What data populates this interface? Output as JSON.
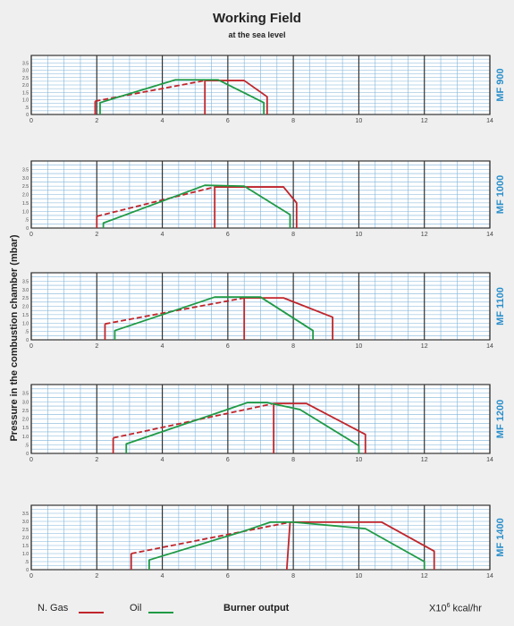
{
  "title": "Working Field",
  "subtitle": "at the sea level",
  "ylabel": "Pressure in the combustion chamber (mbar)",
  "legend": {
    "gas_label": "N. Gas",
    "oil_label": "Oil",
    "center_label": "Burner output",
    "unit_prefix": "X10",
    "unit_exp": "6",
    "unit_suffix": " kcal/hr"
  },
  "colors": {
    "gas": "#c0252b",
    "oil": "#1f9a45",
    "model_label": "#2a8fcb",
    "grid_minor": "#7fb3d9",
    "grid_major": "#333333"
  },
  "chart_data": [
    {
      "type": "line",
      "model": "MF 900",
      "xlim": [
        0,
        14
      ],
      "ylim": [
        0,
        4
      ],
      "x_ticks": [
        0,
        2,
        4,
        6,
        8,
        10,
        12,
        14
      ],
      "x_tick_labels": [
        "0",
        "2",
        "4",
        "6",
        "8",
        "10",
        "12",
        "14"
      ],
      "y_tick_labels": [
        "3.5",
        "3.0",
        "2.5",
        "2.0",
        "1.5",
        "1.0",
        ".5",
        "0"
      ],
      "series": [
        {
          "name": "N. Gas",
          "segments": [
            {
              "dashed": false,
              "points": [
                [
                  1.95,
                  0
                ],
                [
                  1.95,
                  0.9
                ]
              ]
            },
            {
              "dashed": true,
              "points": [
                [
                  1.95,
                  0.9
                ],
                [
                  5.3,
                  2.3
                ]
              ]
            },
            {
              "dashed": false,
              "points": [
                [
                  5.3,
                  2.3
                ],
                [
                  6.5,
                  2.3
                ],
                [
                  7.2,
                  1.2
                ],
                [
                  7.2,
                  0
                ]
              ]
            },
            {
              "dashed": false,
              "points": [
                [
                  5.3,
                  2.3
                ],
                [
                  5.3,
                  0
                ]
              ]
            }
          ]
        },
        {
          "name": "Oil",
          "segments": [
            {
              "dashed": false,
              "points": [
                [
                  2.1,
                  0
                ],
                [
                  2.1,
                  0.8
                ],
                [
                  4.4,
                  2.35
                ],
                [
                  5.7,
                  2.35
                ],
                [
                  7.1,
                  0.8
                ],
                [
                  7.1,
                  0
                ]
              ]
            }
          ]
        }
      ]
    },
    {
      "type": "line",
      "model": "MF 1000",
      "xlim": [
        0,
        14
      ],
      "ylim": [
        0,
        4
      ],
      "x_ticks": [
        0,
        2,
        4,
        6,
        8,
        10,
        12,
        14
      ],
      "x_tick_labels": [
        "0",
        "2",
        "4",
        "6",
        "8",
        "10",
        "12",
        "14"
      ],
      "y_tick_labels": [
        "3.5",
        "3.0",
        "2.5",
        "2.0",
        "1.5",
        "1.0",
        ".5",
        "0"
      ],
      "series": [
        {
          "name": "N. Gas",
          "segments": [
            {
              "dashed": false,
              "points": [
                [
                  2.0,
                  0
                ],
                [
                  2.0,
                  0.7
                ]
              ]
            },
            {
              "dashed": true,
              "points": [
                [
                  2.0,
                  0.7
                ],
                [
                  5.6,
                  2.45
                ]
              ]
            },
            {
              "dashed": false,
              "points": [
                [
                  5.6,
                  2.45
                ],
                [
                  7.7,
                  2.45
                ],
                [
                  8.1,
                  1.5
                ],
                [
                  8.1,
                  0
                ]
              ]
            },
            {
              "dashed": false,
              "points": [
                [
                  5.6,
                  2.45
                ],
                [
                  5.6,
                  0
                ]
              ]
            }
          ]
        },
        {
          "name": "Oil",
          "segments": [
            {
              "dashed": false,
              "points": [
                [
                  2.2,
                  0
                ],
                [
                  2.2,
                  0.3
                ],
                [
                  5.3,
                  2.55
                ],
                [
                  6.5,
                  2.5
                ],
                [
                  7.9,
                  0.8
                ],
                [
                  7.9,
                  0
                ]
              ]
            }
          ]
        }
      ]
    },
    {
      "type": "line",
      "model": "MF 1100",
      "xlim": [
        0,
        14
      ],
      "ylim": [
        0,
        4
      ],
      "x_ticks": [
        0,
        2,
        4,
        6,
        8,
        10,
        12,
        14
      ],
      "x_tick_labels": [
        "0",
        "2",
        "4",
        "6",
        "8",
        "10",
        "12",
        "14"
      ],
      "y_tick_labels": [
        "3.5",
        "3.0",
        "2.5",
        "2.0",
        "1.5",
        "1.0",
        ".5",
        "0"
      ],
      "series": [
        {
          "name": "N. Gas",
          "segments": [
            {
              "dashed": false,
              "points": [
                [
                  2.25,
                  0
                ],
                [
                  2.25,
                  0.95
                ]
              ]
            },
            {
              "dashed": true,
              "points": [
                [
                  2.25,
                  0.95
                ],
                [
                  6.5,
                  2.5
                ]
              ]
            },
            {
              "dashed": false,
              "points": [
                [
                  6.5,
                  2.5
                ],
                [
                  7.7,
                  2.5
                ],
                [
                  9.2,
                  1.35
                ],
                [
                  9.2,
                  0
                ]
              ]
            },
            {
              "dashed": false,
              "points": [
                [
                  6.5,
                  2.5
                ],
                [
                  6.5,
                  0
                ]
              ]
            }
          ]
        },
        {
          "name": "Oil",
          "segments": [
            {
              "dashed": false,
              "points": [
                [
                  2.55,
                  0
                ],
                [
                  2.55,
                  0.55
                ],
                [
                  5.6,
                  2.55
                ],
                [
                  7.0,
                  2.55
                ],
                [
                  8.6,
                  0.55
                ],
                [
                  8.6,
                  0
                ]
              ]
            }
          ]
        }
      ]
    },
    {
      "type": "line",
      "model": "MF 1200",
      "xlim": [
        0,
        14
      ],
      "ylim": [
        0,
        4
      ],
      "x_ticks": [
        0,
        2,
        4,
        6,
        8,
        10,
        12,
        14
      ],
      "x_tick_labels": [
        "0",
        "2",
        "4",
        "6",
        "8",
        "10",
        "12",
        "14"
      ],
      "y_tick_labels": [
        "3.5",
        "3.0",
        "2.5",
        "2.0",
        "1.5",
        "1.0",
        ".5",
        "0"
      ],
      "series": [
        {
          "name": "N. Gas",
          "segments": [
            {
              "dashed": false,
              "points": [
                [
                  2.5,
                  0
                ],
                [
                  2.5,
                  0.9
                ]
              ]
            },
            {
              "dashed": true,
              "points": [
                [
                  2.5,
                  0.9
                ],
                [
                  7.4,
                  2.9
                ]
              ]
            },
            {
              "dashed": false,
              "points": [
                [
                  7.4,
                  2.9
                ],
                [
                  8.4,
                  2.9
                ],
                [
                  10.2,
                  1.1
                ],
                [
                  10.2,
                  0
                ]
              ]
            },
            {
              "dashed": false,
              "points": [
                [
                  7.4,
                  2.9
                ],
                [
                  7.4,
                  0
                ]
              ]
            }
          ]
        },
        {
          "name": "Oil",
          "segments": [
            {
              "dashed": false,
              "points": [
                [
                  2.9,
                  0
                ],
                [
                  2.9,
                  0.55
                ],
                [
                  6.6,
                  2.95
                ],
                [
                  7.2,
                  2.95
                ],
                [
                  8.2,
                  2.55
                ],
                [
                  10.0,
                  0.45
                ],
                [
                  10.0,
                  0
                ]
              ]
            }
          ]
        }
      ]
    },
    {
      "type": "line",
      "model": "MF 1400",
      "xlim": [
        0,
        14
      ],
      "ylim": [
        0,
        4
      ],
      "x_ticks": [
        0,
        2,
        4,
        6,
        8,
        10,
        12,
        14
      ],
      "x_tick_labels": [
        "0",
        "2",
        "4",
        "6",
        "8",
        "10",
        "12",
        "14"
      ],
      "y_tick_labels": [
        "3.5",
        "3.0",
        "2.5",
        "2.0",
        "1.5",
        "1.0",
        ".5",
        "0"
      ],
      "series": [
        {
          "name": "N. Gas",
          "segments": [
            {
              "dashed": false,
              "points": [
                [
                  3.05,
                  0
                ],
                [
                  3.05,
                  1.0
                ]
              ]
            },
            {
              "dashed": true,
              "points": [
                [
                  3.05,
                  1.0
                ],
                [
                  7.9,
                  2.95
                ]
              ]
            },
            {
              "dashed": false,
              "points": [
                [
                  7.9,
                  2.95
                ],
                [
                  10.7,
                  2.95
                ],
                [
                  12.3,
                  1.15
                ],
                [
                  12.3,
                  0
                ]
              ]
            },
            {
              "dashed": false,
              "points": [
                [
                  7.9,
                  2.95
                ],
                [
                  7.8,
                  0
                ]
              ]
            }
          ]
        },
        {
          "name": "Oil",
          "segments": [
            {
              "dashed": false,
              "points": [
                [
                  3.6,
                  0
                ],
                [
                  3.6,
                  0.6
                ],
                [
                  6.5,
                  2.4
                ],
                [
                  7.3,
                  2.95
                ],
                [
                  8.0,
                  2.95
                ],
                [
                  10.2,
                  2.55
                ],
                [
                  12.0,
                  0.5
                ],
                [
                  12.0,
                  0
                ]
              ]
            }
          ]
        }
      ]
    }
  ]
}
